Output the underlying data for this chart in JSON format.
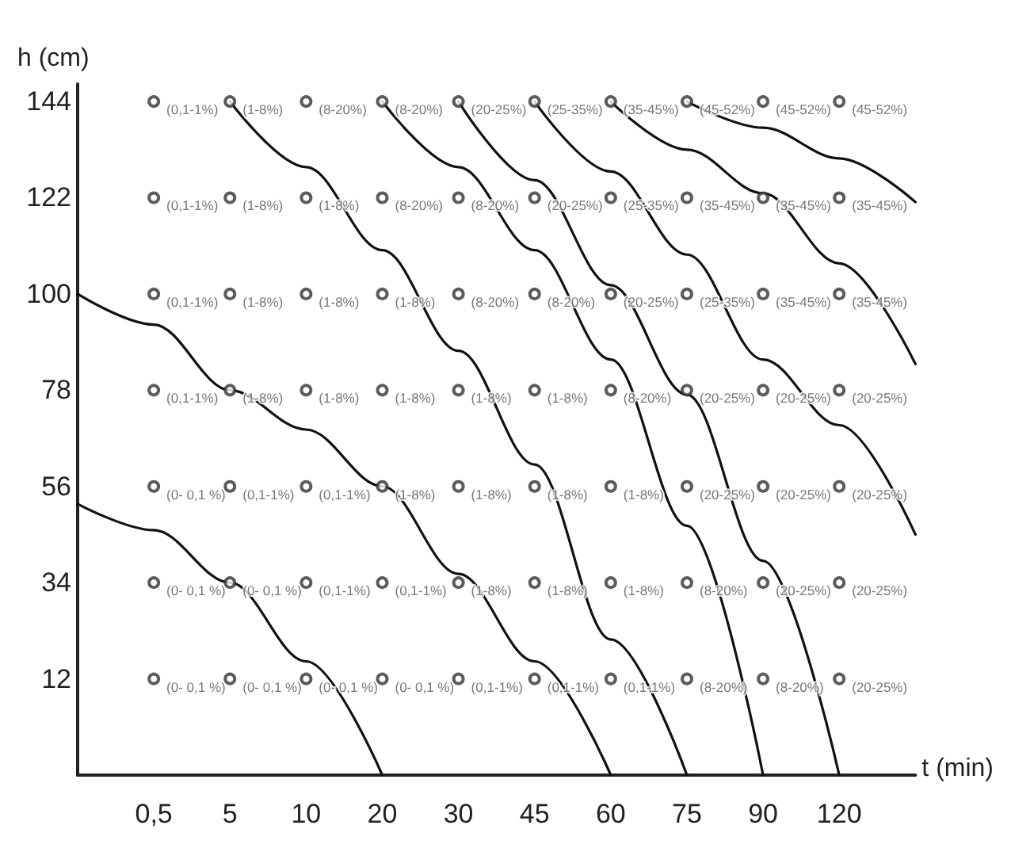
{
  "chart_data": {
    "type": "scatter",
    "xlabel": "t (min)",
    "ylabel": "h (cm)",
    "categories": [
      null,
      "0,5",
      "5",
      "10",
      "20",
      "30",
      "45",
      "60",
      "75",
      "90",
      "120",
      null
    ],
    "ylim": [
      -10,
      148
    ],
    "yticks": [
      12,
      34,
      56,
      78,
      100,
      122,
      144
    ],
    "grid": false,
    "series": [
      {
        "marker": "circle",
        "color": "#333333",
        "x": [
          "0,5",
          "5",
          "10",
          "20",
          "30",
          "45",
          "60",
          "75",
          "90",
          "120",
          "0,5",
          "5",
          "10",
          "20",
          "30",
          "45",
          "60",
          "75",
          "90",
          "120",
          "0,5",
          "5",
          "10",
          "20",
          "30",
          "45",
          "60",
          "75",
          "90",
          "120",
          "0,5",
          "5",
          "10",
          "20",
          "30",
          "45",
          "60",
          "75",
          "90",
          "120",
          "0,5",
          "5",
          "10",
          "20",
          "30",
          "45",
          "60",
          "75",
          "90",
          "120",
          "0,5",
          "5",
          "10",
          "20",
          "30",
          "45",
          "60",
          "75",
          "90",
          "120",
          "0,5",
          "5",
          "10",
          "20",
          "30",
          "45",
          "60",
          "75",
          "90",
          "120"
        ],
        "values": [
          144,
          144,
          144,
          144,
          144,
          144,
          144,
          144,
          144,
          144,
          122,
          122,
          122,
          122,
          122,
          122,
          122,
          122,
          122,
          122,
          100,
          100,
          100,
          100,
          100,
          100,
          100,
          100,
          100,
          100,
          78,
          78,
          78,
          78,
          78,
          78,
          78,
          78,
          78,
          78,
          56,
          56,
          56,
          56,
          56,
          56,
          56,
          56,
          56,
          56,
          34,
          34,
          34,
          34,
          34,
          34,
          34,
          34,
          34,
          34,
          12,
          12,
          12,
          12,
          12,
          12,
          12,
          12,
          12,
          12
        ],
        "value_labels": [
          "(0,1-1%)",
          "(1-8%)",
          "(8-20%)",
          "(8-20%)",
          "(20-25%)",
          "(25-35%)",
          "(35-45%)",
          "(45-52%)",
          "(45-52%)",
          "(45-52%)",
          "(0,1-1%)",
          "(1-8%)",
          "(1-8%)",
          "(8-20%)",
          "(8-20%)",
          "(20-25%)",
          "(25-35%)",
          "(35-45%)",
          "(35-45%)",
          "(35-45%)",
          "(0,1-1%)",
          "(1-8%)",
          "(1-8%)",
          "(1-8%)",
          "(8-20%)",
          "(8-20%)",
          "(20-25%)",
          "(25-35%)",
          "(35-45%)",
          "(35-45%)",
          "(0,1-1%)",
          "(1-8%)",
          "(1-8%)",
          "(1-8%)",
          "(1-8%)",
          "(1-8%)",
          "(8-20%)",
          "(20-25%)",
          "(20-25%)",
          "(20-25%)",
          "(0- 0,1 %)",
          "(0,1-1%)",
          "(0,1-1%)",
          "(1-8%)",
          "(1-8%)",
          "(1-8%)",
          "(1-8%)",
          "(20-25%)",
          "(20-25%)",
          "(20-25%)",
          "(0- 0,1 %)",
          "(0- 0,1 %)",
          "(0,1-1%)",
          "(0,1-1%)",
          "(1-8%)",
          "(1-8%)",
          "(1-8%)",
          "(8-20%)",
          "(20-25%)",
          "(20-25%)",
          "(0- 0,1 %)",
          "(0- 0,1 %)",
          "(0- 0,1 %)",
          "(0- 0,1 %)",
          "(0,1-1%)",
          "(0,1-1%)",
          "(0,1-1%)",
          "(8-20%)",
          "(8-20%)",
          "(20-25%)"
        ]
      },
      {
        "type": "line",
        "marker": "none",
        "line_style": "solid",
        "color": "#111111",
        "values": [
          52,
          46,
          34,
          16,
          -10,
          null,
          null,
          null,
          null,
          null,
          null,
          null
        ]
      },
      {
        "type": "line",
        "marker": "none",
        "line_style": "solid",
        "color": "#111111",
        "values": [
          100,
          93,
          78,
          69,
          56,
          36,
          16,
          -10,
          null,
          null,
          null,
          null
        ]
      },
      {
        "type": "line",
        "marker": "none",
        "line_style": "solid",
        "color": "#111111",
        "values": [
          null,
          null,
          144,
          129,
          110,
          87,
          61,
          21,
          -10,
          null,
          null,
          null
        ]
      },
      {
        "type": "line",
        "marker": "none",
        "line_style": "solid",
        "color": "#111111",
        "values": [
          null,
          null,
          null,
          null,
          144,
          129,
          110,
          85,
          47,
          -10,
          null,
          null
        ]
      },
      {
        "type": "line",
        "marker": "none",
        "line_style": "solid",
        "color": "#111111",
        "values": [
          null,
          null,
          null,
          null,
          null,
          144,
          126,
          102,
          77,
          39,
          -10,
          null
        ]
      },
      {
        "type": "line",
        "marker": "none",
        "line_style": "solid",
        "color": "#111111",
        "values": [
          null,
          null,
          null,
          null,
          null,
          null,
          144,
          128,
          109,
          85,
          70,
          45
        ]
      },
      {
        "type": "line",
        "marker": "none",
        "line_style": "solid",
        "color": "#111111",
        "values": [
          null,
          null,
          null,
          null,
          null,
          null,
          null,
          144,
          133,
          123,
          107,
          84
        ]
      },
      {
        "type": "line",
        "marker": "none",
        "line_style": "solid",
        "color": "#111111",
        "values": [
          null,
          null,
          null,
          null,
          null,
          null,
          null,
          null,
          144,
          138,
          131,
          121
        ]
      }
    ]
  }
}
